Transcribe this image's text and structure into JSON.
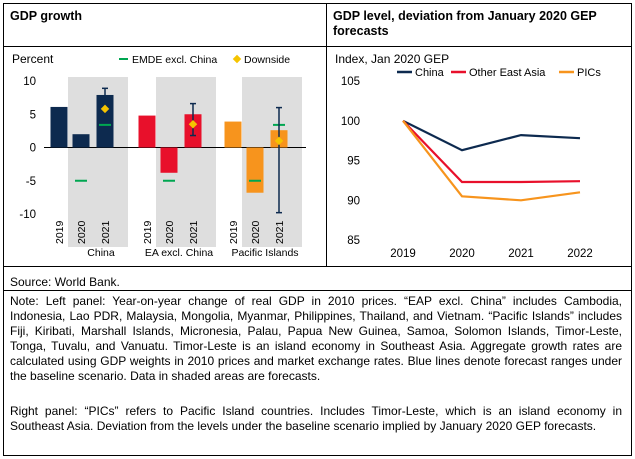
{
  "left_panel": {
    "title": "GDP growth",
    "ylabel": "Percent",
    "legend": {
      "emde": "EMDE excl. China",
      "downside": "Downside"
    }
  },
  "right_panel": {
    "title": "GDP level, deviation from January 2020 GEP forecasts",
    "ylabel": "Index, Jan 2020 GEP",
    "legend": {
      "china": "China",
      "ea": "Other East Asia",
      "pics": "PICs"
    }
  },
  "colors": {
    "china": "#0D2A4F",
    "ea": "#E8102B",
    "pics": "#F7941D",
    "emde": "#00A651",
    "downside": "#F5C400",
    "shade": "#DEDEDE",
    "range": "#0D2A4F"
  },
  "source": "Source: World Bank.",
  "note1": "Note: Left panel: Year-on-year change of real GDP in 2010 prices. “EAP excl. China” includes Cambodia, Indonesia, Lao PDR, Malaysia, Mongolia, Myanmar, Philippines, Thailand, and Vietnam. “Pacific Islands” includes Fiji, Kiribati, Marshall Islands, Micronesia, Palau, Papua New Guinea, Samoa, Solomon Islands, Timor-Leste, Tonga, Tuvalu, and Vanuatu. Timor-Leste is an island economy in Southeast Asia. Aggregate growth rates are calculated using GDP weights in 2010 prices and market exchange rates. Blue lines denote forecast ranges under the baseline scenario. Data in shaded areas are forecasts.",
  "note2": "Right panel: “PICs” refers to Pacific Island countries. Includes Timor-Leste, which is an island economy in Southeast Asia. Deviation from the levels under the baseline scenario implied by January 2020 GEP forecasts.",
  "chart_data": [
    {
      "type": "bar",
      "title": "GDP growth",
      "ylabel": "Percent",
      "ylim": [
        -10,
        10
      ],
      "yticks": [
        -10,
        -5,
        0,
        5,
        10
      ],
      "groups": [
        {
          "name": "China",
          "color_key": "china",
          "years": [
            "2019",
            "2020",
            "2021"
          ],
          "values": [
            6.1,
            2.0,
            7.9
          ],
          "emde": [
            null,
            -5.0,
            3.4
          ],
          "downside": [
            null,
            null,
            5.8
          ],
          "range": [
            null,
            null,
            [
              6.8,
              8.9
            ]
          ]
        },
        {
          "name": "EA excl. China",
          "color_key": "ea",
          "years": [
            "2019",
            "2020",
            "2021"
          ],
          "values": [
            4.8,
            -3.8,
            5.0
          ],
          "emde": [
            null,
            -5.0,
            null
          ],
          "downside": [
            null,
            null,
            3.5
          ],
          "range": [
            null,
            null,
            [
              1.8,
              6.6
            ]
          ]
        },
        {
          "name": "Pacific Islands",
          "color_key": "pics",
          "years": [
            "2019",
            "2020",
            "2021"
          ],
          "values": [
            3.9,
            -6.8,
            2.6
          ],
          "emde": [
            null,
            -5.0,
            3.4
          ],
          "downside": [
            null,
            null,
            1.0
          ],
          "range": [
            null,
            null,
            [
              -9.8,
              6.0
            ]
          ]
        }
      ],
      "shaded": "forecast years 2020-2021"
    },
    {
      "type": "line",
      "title": "GDP level, deviation from January 2020 GEP forecasts",
      "ylabel": "Index, Jan 2020 GEP",
      "x": [
        "2019",
        "2020",
        "2021",
        "2022"
      ],
      "ylim": [
        85,
        105
      ],
      "yticks": [
        85,
        90,
        95,
        100,
        105
      ],
      "series": [
        {
          "name": "China",
          "color_key": "china",
          "values": [
            100,
            96.3,
            98.2,
            97.8
          ]
        },
        {
          "name": "Other East Asia",
          "color_key": "ea",
          "values": [
            100,
            92.3,
            92.3,
            92.4
          ]
        },
        {
          "name": "PICs",
          "color_key": "pics",
          "values": [
            100,
            90.5,
            90.0,
            91.0
          ]
        }
      ]
    }
  ]
}
